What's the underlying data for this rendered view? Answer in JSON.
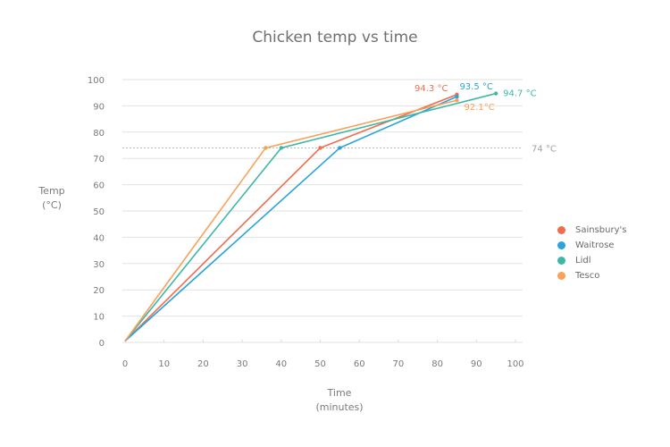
{
  "chart_data": {
    "type": "line",
    "title": "Chicken temp vs time",
    "xlabel": "Time (minutes)",
    "ylabel": "Temp (°C)",
    "xlim": [
      0,
      100
    ],
    "ylim": [
      0,
      100
    ],
    "x_ticks": [
      0,
      10,
      20,
      30,
      40,
      50,
      60,
      70,
      80,
      90,
      100
    ],
    "y_ticks": [
      0,
      10,
      20,
      30,
      40,
      50,
      60,
      70,
      80,
      90,
      100
    ],
    "grid": "horizontal",
    "legend_position": "right",
    "reference_line": {
      "y": 74,
      "label": "74 °C",
      "style": "dotted"
    },
    "series": [
      {
        "name": "Sainsbury's",
        "color": "#ef6c4d",
        "points": [
          [
            0,
            0.5
          ],
          [
            50,
            74
          ],
          [
            85,
            94.3
          ]
        ],
        "end_label": "94.3 °C"
      },
      {
        "name": "Waitrose",
        "color": "#2aa3dd",
        "points": [
          [
            0,
            0.5
          ],
          [
            55,
            74
          ],
          [
            85,
            93.5
          ]
        ],
        "end_label": "93.5 °C"
      },
      {
        "name": "Lidl",
        "color": "#3db8a7",
        "points": [
          [
            0,
            0.5
          ],
          [
            40,
            74
          ],
          [
            95,
            94.7
          ]
        ],
        "end_label": "94.7 °C"
      },
      {
        "name": "Tesco",
        "color": "#f7a159",
        "points": [
          [
            0,
            0.5
          ],
          [
            36,
            74
          ],
          [
            85,
            92.1
          ]
        ],
        "end_label": "92.1°C"
      }
    ]
  },
  "labels": {
    "title": "Chicken temp vs time",
    "ylabel_line1": "Temp",
    "ylabel_line2": "(°C)",
    "xlabel_line1": "Time",
    "xlabel_line2": "(minutes)"
  }
}
